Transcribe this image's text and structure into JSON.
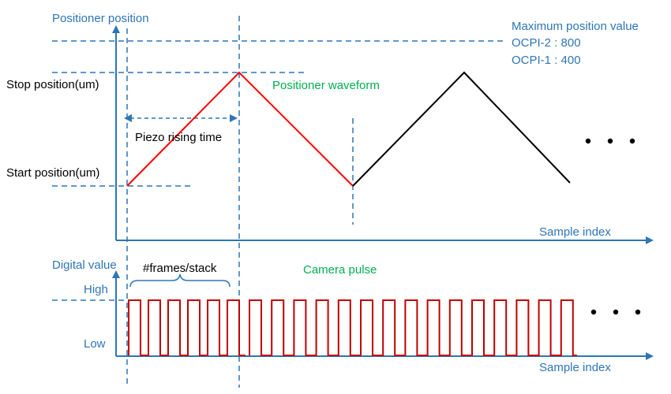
{
  "top_panel": {
    "y_axis_label": "Positioner position",
    "x_axis_label": "Sample index",
    "stop_label": "Stop position(um)",
    "start_label": "Start position(um)",
    "rise_label": "Piezo rising time",
    "waveform_label": "Positioner waveform",
    "max_title": "Maximum position value",
    "max_line1": "OCPI-2 : 800",
    "max_line2": "OCPI-1 : 400"
  },
  "bottom_panel": {
    "y_axis_label": "Digital value",
    "x_axis_label": "Sample index",
    "high_label": "High",
    "low_label": "Low",
    "frames_label": "#frames/stack",
    "pulse_label": "Camera pulse"
  },
  "colors": {
    "axis": "#2E75B6",
    "first_ramp": "#FF0000",
    "second_ramp": "#000000",
    "pulse": "#C00000",
    "label_green": "#00B050"
  },
  "camera_pulses": {
    "first_group_count": 6,
    "second_group_count": 15
  }
}
